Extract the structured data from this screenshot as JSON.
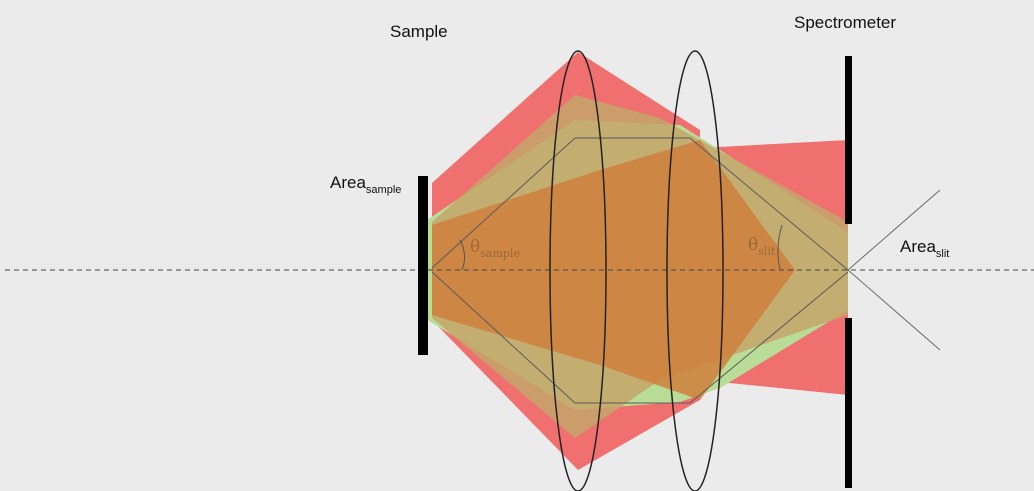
{
  "labels": {
    "sample": "Sample",
    "spectrometer": "Spectrometer",
    "area_sample_main": "Area",
    "area_sample_sub": "sample",
    "area_slit_main": "Area",
    "area_slit_sub": "slit",
    "theta_sample_symbol": "θ",
    "theta_sample_sub": "sample",
    "theta_slit_symbol": "θ",
    "theta_slit_sub": "slit"
  },
  "colors": {
    "background": "#ebebeb",
    "red_beam": "#f07070",
    "green_beam": "#b9dc96",
    "orange_overlap": "#cf7f3c",
    "brown_overlap": "#c4a46a",
    "stop": "#000000",
    "lens_outline": "#222222",
    "axis": "#444444"
  }
}
